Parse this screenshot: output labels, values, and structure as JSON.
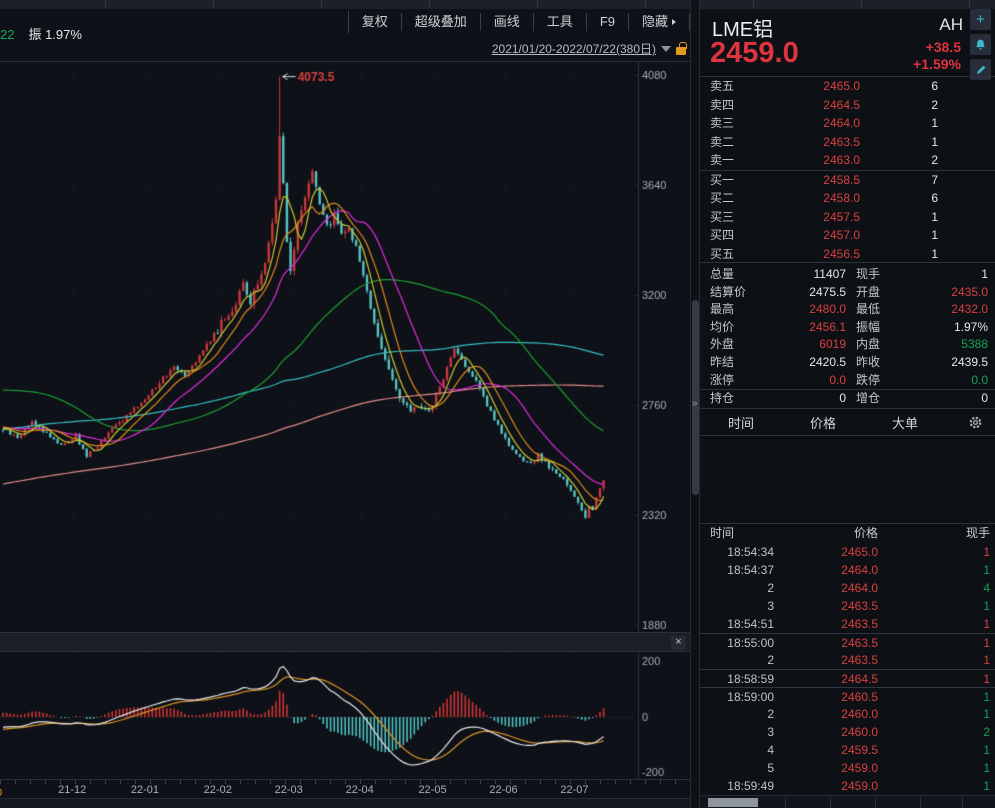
{
  "menubar": {
    "items": [
      "复权",
      "超级叠加",
      "画线",
      "工具",
      "F9",
      "隐藏"
    ]
  },
  "chart_header": {
    "left_fragment": "22",
    "amplitude_label": "振 1.97%",
    "date_range": "2021/01/20-2022/07/22(380日)",
    "lock_icon": "unlock-orange"
  },
  "chart_data": {
    "type": "candlestick_with_macd",
    "bars": 166,
    "bar_space": 3.64,
    "y_ticks": [
      4080,
      3640,
      3200,
      2760,
      2320,
      1880
    ],
    "macd_ticks": [
      "200",
      "0",
      "-200"
    ],
    "x_labels": [
      {
        "label": "21-12",
        "bar": 19
      },
      {
        "label": "22-01",
        "bar": 39
      },
      {
        "label": "22-02",
        "bar": 59
      },
      {
        "label": "22-03",
        "bar": 78.5
      },
      {
        "label": "22-04",
        "bar": 98
      },
      {
        "label": "22-05",
        "bar": 118
      },
      {
        "label": "22-06",
        "bar": 137.5
      },
      {
        "label": "22-07",
        "bar": 157
      }
    ],
    "peak": {
      "bar": 76,
      "value": 4073.5,
      "label": "4073.5"
    },
    "pre_anchors": [
      [
        -250,
        1990
      ],
      [
        -210,
        2170
      ],
      [
        -170,
        2300
      ],
      [
        -130,
        2420
      ],
      [
        -90,
        2480
      ],
      [
        -70,
        2560
      ],
      [
        -55,
        2700
      ],
      [
        -45,
        2950
      ],
      [
        -38,
        3180
      ],
      [
        -33,
        3050
      ],
      [
        -28,
        2880
      ],
      [
        -22,
        2720
      ],
      [
        -16,
        2650
      ],
      [
        -10,
        2690
      ],
      [
        -5,
        2672
      ],
      [
        -1,
        2668
      ]
    ],
    "close_anchors": [
      [
        0,
        2665
      ],
      [
        4,
        2628
      ],
      [
        8,
        2695
      ],
      [
        12,
        2645
      ],
      [
        16,
        2602
      ],
      [
        20,
        2635
      ],
      [
        23,
        2556
      ],
      [
        27,
        2612
      ],
      [
        31,
        2680
      ],
      [
        35,
        2725
      ],
      [
        39,
        2788
      ],
      [
        43,
        2850
      ],
      [
        47,
        2918
      ],
      [
        50,
        2885
      ],
      [
        54,
        2958
      ],
      [
        59,
        3062
      ],
      [
        63,
        3145
      ],
      [
        66,
        3235
      ],
      [
        68,
        3168
      ],
      [
        71,
        3285
      ],
      [
        73,
        3405
      ],
      [
        75,
        3585
      ],
      [
        76,
        3835
      ],
      [
        77,
        3640
      ],
      [
        78,
        3430
      ],
      [
        79,
        3295
      ],
      [
        81,
        3485
      ],
      [
        83,
        3605
      ],
      [
        85,
        3695
      ],
      [
        87,
        3555
      ],
      [
        89,
        3465
      ],
      [
        91,
        3525
      ],
      [
        93,
        3440
      ],
      [
        95,
        3480
      ],
      [
        97,
        3390
      ],
      [
        99,
        3280
      ],
      [
        101,
        3150
      ],
      [
        103,
        3030
      ],
      [
        105,
        2950
      ],
      [
        107,
        2860
      ],
      [
        109,
        2780
      ],
      [
        112,
        2738
      ],
      [
        114,
        2760
      ],
      [
        117,
        2730
      ],
      [
        120,
        2830
      ],
      [
        124,
        2985
      ],
      [
        127,
        2920
      ],
      [
        130,
        2850
      ],
      [
        133,
        2760
      ],
      [
        136,
        2680
      ],
      [
        139,
        2590
      ],
      [
        142,
        2545
      ],
      [
        145,
        2520
      ],
      [
        147,
        2560
      ],
      [
        150,
        2515
      ],
      [
        152,
        2480
      ],
      [
        154,
        2462
      ],
      [
        156,
        2420
      ],
      [
        158,
        2370
      ],
      [
        160,
        2315
      ],
      [
        161,
        2355
      ],
      [
        162,
        2340
      ],
      [
        163,
        2390
      ],
      [
        164,
        2428
      ],
      [
        165,
        2459
      ]
    ],
    "noise": 9,
    "wick_base": 4,
    "wick_var": 10,
    "ma_lines": [
      {
        "period": 250,
        "color": "#e08c8c"
      },
      {
        "period": 120,
        "color": "#35bfc6"
      },
      {
        "period": 60,
        "color": "#1d9e33"
      },
      {
        "period": 20,
        "color": "#dd2cdd"
      },
      {
        "period": 10,
        "color": "#de8a1d"
      },
      {
        "period": 5,
        "color": "#c9c832"
      }
    ],
    "colors": {
      "up": "#c8393c",
      "down": "#57c3c3",
      "grid": "#23272f",
      "axis_line": "#2c313a",
      "tick_text": "#a6abb3",
      "dif": "#e7e9ec",
      "dea": "#dd9426",
      "hist_up": "#cf3434",
      "hist_down": "#4fc3c3",
      "annotation": "#d84040",
      "arrow": "#d6d9dd"
    }
  },
  "pane_divider": {
    "close_label": "×"
  },
  "v_divider": {
    "arrow": "»"
  },
  "right_panel": {
    "title": "LME铝",
    "market": "AH",
    "price": "2459.0",
    "change": "+38.5",
    "change_pct": "+1.59%",
    "icons": [
      "plus-icon",
      "bell-icon",
      "pencil-icon"
    ],
    "ask_rows": [
      {
        "label": "卖五",
        "price": "2465.0",
        "qty": "6"
      },
      {
        "label": "卖四",
        "price": "2464.5",
        "qty": "2"
      },
      {
        "label": "卖三",
        "price": "2464.0",
        "qty": "1"
      },
      {
        "label": "卖二",
        "price": "2463.5",
        "qty": "1"
      },
      {
        "label": "卖一",
        "price": "2463.0",
        "qty": "2"
      }
    ],
    "bid_rows": [
      {
        "label": "买一",
        "price": "2458.5",
        "qty": "7"
      },
      {
        "label": "买二",
        "price": "2458.0",
        "qty": "6"
      },
      {
        "label": "买三",
        "price": "2457.5",
        "qty": "1"
      },
      {
        "label": "买四",
        "price": "2457.0",
        "qty": "1"
      },
      {
        "label": "买五",
        "price": "2456.5",
        "qty": "1"
      }
    ],
    "stats_rows": [
      {
        "l1": "总量",
        "v1": "11407",
        "c1": "w",
        "l2": "现手",
        "v2": "1",
        "c2": "w",
        "sep": false
      },
      {
        "l1": "结算价",
        "v1": "2475.5",
        "c1": "w",
        "l2": "开盘",
        "v2": "2435.0",
        "c2": "r",
        "sep": false
      },
      {
        "l1": "最高",
        "v1": "2480.0",
        "c1": "r",
        "l2": "最低",
        "v2": "2432.0",
        "c2": "r",
        "sep": false
      },
      {
        "l1": "均价",
        "v1": "2456.1",
        "c1": "r",
        "l2": "振幅",
        "v2": "1.97%",
        "c2": "w",
        "sep": false
      },
      {
        "l1": "外盘",
        "v1": "6019",
        "c1": "r",
        "l2": "内盘",
        "v2": "5388",
        "c2": "g",
        "sep": false
      },
      {
        "l1": "昨结",
        "v1": "2420.5",
        "c1": "w",
        "l2": "昨收",
        "v2": "2439.5",
        "c2": "w",
        "sep": false
      },
      {
        "l1": "涨停",
        "v1": "0.0",
        "c1": "r",
        "l2": "跌停",
        "v2": "0.0",
        "c2": "g",
        "sep": false
      },
      {
        "l1": "持仓",
        "v1": "0",
        "c1": "w",
        "l2": "增仓",
        "v2": "0",
        "c2": "w",
        "sep": true
      }
    ],
    "tabs": [
      "时间",
      "价格",
      "大单"
    ],
    "trade_header": {
      "time": "时间",
      "price": "价格",
      "qty": "现手"
    },
    "trades": [
      {
        "t": "18:54:34",
        "p": "2465.0",
        "q": "1",
        "qc": "r",
        "sep": false
      },
      {
        "t": "18:54:37",
        "p": "2464.0",
        "q": "1",
        "qc": "g",
        "sep": false
      },
      {
        "t": "2",
        "p": "2464.0",
        "q": "4",
        "qc": "g",
        "sep": false
      },
      {
        "t": "3",
        "p": "2463.5",
        "q": "1",
        "qc": "g",
        "sep": false
      },
      {
        "t": "18:54:51",
        "p": "2463.5",
        "q": "1",
        "qc": "r",
        "sep": false
      },
      {
        "t": "18:55:00",
        "p": "2463.5",
        "q": "1",
        "qc": "r",
        "sep": true
      },
      {
        "t": "2",
        "p": "2463.5",
        "q": "1",
        "qc": "r",
        "sep": false
      },
      {
        "t": "18:58:59",
        "p": "2464.5",
        "q": "1",
        "qc": "r",
        "sep": true
      },
      {
        "t": "18:59:00",
        "p": "2460.5",
        "q": "1",
        "qc": "g",
        "sep": true
      },
      {
        "t": "2",
        "p": "2460.0",
        "q": "1",
        "qc": "g",
        "sep": false
      },
      {
        "t": "3",
        "p": "2460.0",
        "q": "2",
        "qc": "g",
        "sep": false
      },
      {
        "t": "4",
        "p": "2459.5",
        "q": "1",
        "qc": "g",
        "sep": false
      },
      {
        "t": "5",
        "p": "2459.0",
        "q": "1",
        "qc": "g",
        "sep": false
      },
      {
        "t": "18:59:49",
        "p": "2459.0",
        "q": "1",
        "qc": "g",
        "sep": false
      }
    ]
  }
}
